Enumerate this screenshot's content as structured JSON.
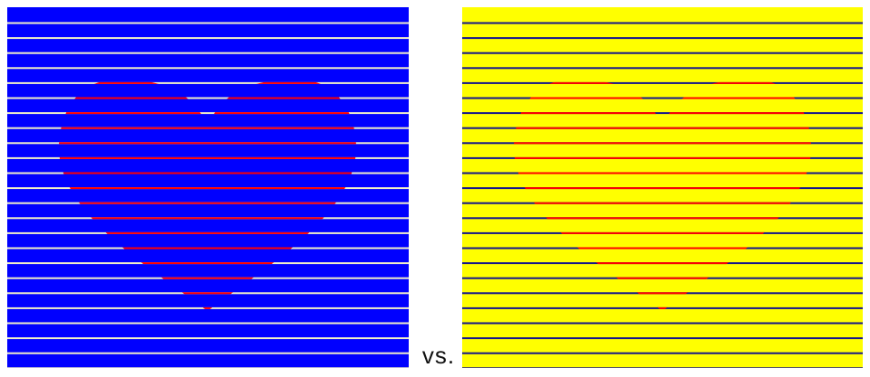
{
  "comparison_label": "vs.",
  "panels": [
    {
      "name": "left",
      "background_color": "#0000ff",
      "line_color": "#f2f0c8",
      "heart_line_color": "#ff0000"
    },
    {
      "name": "right",
      "background_color": "#ffff00",
      "line_color": "#14148c",
      "heart_line_color": "#ff0000"
    }
  ],
  "colors": {
    "page_background": "#ffffff"
  }
}
